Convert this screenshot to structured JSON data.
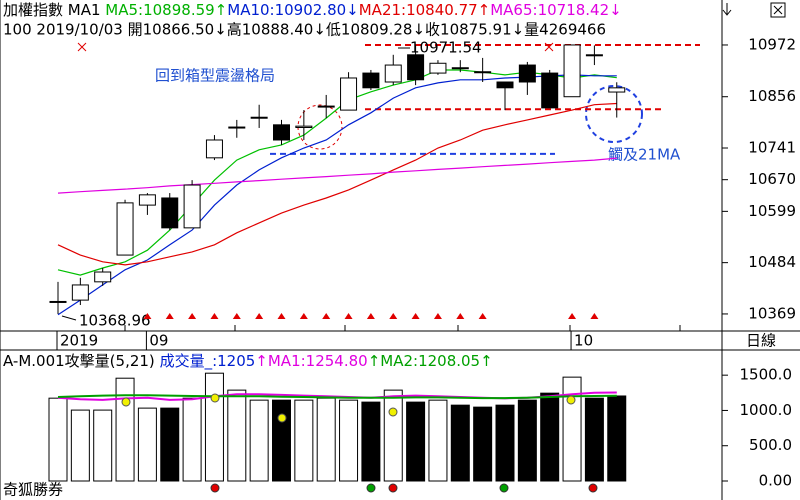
{
  "chart_data": [
    {
      "type": "candlestick",
      "header": [
        {
          "text": "加權指數 MA1 ",
          "color": "#000000"
        },
        {
          "text": "MA5:10898.59↑",
          "color": "#00b000"
        },
        {
          "text": "MA10:10902.80↓",
          "color": "#0020d0"
        },
        {
          "text": "MA21:10840.77↑",
          "color": "#e00000"
        },
        {
          "text": "MA65:10718.42↓",
          "color": "#e000e0"
        }
      ],
      "subheader": "100 2019/10/03 開10866.50↓高10888.40↓低10809.28↓收10875.91↓量4269466",
      "categories": [
        "2019",
        null,
        null,
        null,
        "09",
        null,
        null,
        null,
        null,
        null,
        null,
        null,
        null,
        null,
        null,
        null,
        null,
        null,
        null,
        null,
        null,
        null,
        null,
        "10",
        null,
        null
      ],
      "open": [
        10396,
        10400,
        10441,
        10501,
        10613,
        10629,
        10562,
        10719,
        10786,
        10808,
        10793,
        10787,
        10833,
        10826,
        10909,
        10889,
        10950,
        10909,
        10920,
        10911,
        10889,
        10927,
        10909,
        10856,
        10949,
        10866.5
      ],
      "high": [
        10441,
        10450,
        10472,
        10625,
        10640,
        10640,
        10669,
        10770,
        10804,
        10838,
        10804,
        10826,
        10860,
        10911,
        10916,
        10950,
        10971.54,
        10938,
        10938,
        10943,
        10889,
        10934,
        10916,
        10972,
        10971,
        10888.4
      ],
      "low": [
        10368.96,
        10389,
        10432,
        10501,
        10591,
        10557,
        10562,
        10714,
        10764,
        10786,
        10748,
        10759,
        10808,
        10826,
        10871,
        10882,
        10882,
        10905,
        10911,
        10889,
        10826,
        10860,
        10831,
        10856,
        10927,
        10809.28
      ],
      "close": [
        10397,
        10434,
        10463,
        10618,
        10636,
        10562,
        10658,
        10759,
        10788,
        10810,
        10759,
        10790,
        10835,
        10898,
        10876,
        10927,
        10894,
        10931,
        10921,
        10912,
        10876,
        10889,
        10831,
        10972,
        10950,
        10875.91
      ],
      "up_color": "#ffffff",
      "down_color": "#000000",
      "series": [
        {
          "name": "MA5",
          "color": "#00c000",
          "values": [
            10468,
            10456,
            10472,
            10486,
            10512,
            10557,
            10613,
            10669,
            10714,
            10737,
            10748,
            10770,
            10808,
            10849,
            10867,
            10882,
            10894,
            10916,
            10916,
            10911,
            10905,
            10911,
            10905,
            10898,
            10905,
            10898.59
          ]
        },
        {
          "name": "MA10",
          "color": "#0020d0",
          "values": [
            10367,
            10400,
            10434,
            10468,
            10490,
            10524,
            10557,
            10613,
            10658,
            10692,
            10719,
            10741,
            10759,
            10793,
            10820,
            10853,
            10876,
            10887,
            10894,
            10894,
            10898,
            10900,
            10903,
            10905,
            10903,
            10902.8
          ]
        },
        {
          "name": "MA21",
          "color": "#e00000",
          "values": [
            10524,
            10501,
            10486,
            10479,
            10486,
            10497,
            10508,
            10524,
            10551,
            10573,
            10595,
            10613,
            10629,
            10647,
            10669,
            10692,
            10714,
            10741,
            10759,
            10781,
            10793,
            10804,
            10815,
            10826,
            10838,
            10840.77
          ]
        },
        {
          "name": "MA65",
          "color": "#e000e0",
          "values": [
            10640,
            10643,
            10646,
            10649,
            10652,
            10656,
            10659,
            10662,
            10665,
            10668,
            10671,
            10674,
            10677,
            10680,
            10683,
            10687,
            10690,
            10693,
            10696,
            10699,
            10702,
            10705,
            10708,
            10711,
            10714,
            10718.42
          ]
        }
      ],
      "ylim": [
        10333,
        11028
      ],
      "yticks": [
        10369,
        10484,
        10599,
        10670,
        10741,
        10856,
        10972
      ],
      "reference_lines": [
        {
          "value": 10972,
          "color": "#e00000"
        },
        {
          "value": 10828,
          "color": "#e00000"
        },
        {
          "value": 10728,
          "color": "#2040e0"
        }
      ],
      "annotations": [
        {
          "text": "回到箱型震盪格局",
          "color": "#2050d0"
        },
        {
          "text": "觸及21MA",
          "color": "#2050d0"
        }
      ],
      "period_label": "日線"
    },
    {
      "type": "bar",
      "header": [
        {
          "text": "A-M.001攻擊量(5,21) ",
          "color": "#000000"
        },
        {
          "text": "成交量_:1205",
          "color": "#0020d0"
        },
        {
          "text": "↑MA1:1254.80",
          "color": "#e000e0"
        },
        {
          "text": "↑MA2:1208.05↑",
          "color": "#00a000"
        }
      ],
      "values": [
        1174,
        1005,
        1005,
        1457,
        1033,
        1033,
        1174,
        1528,
        1288,
        1146,
        1146,
        1146,
        1174,
        1146,
        1118,
        1288,
        1118,
        1146,
        1075,
        1047,
        1075,
        1146,
        1245,
        1472,
        1174,
        1205
      ],
      "bar_fills": [
        "#ffffff",
        "#ffffff",
        "#ffffff",
        "#ffffff",
        "#ffffff",
        "#000000",
        "#ffffff",
        "#ffffff",
        "#ffffff",
        "#ffffff",
        "#000000",
        "#ffffff",
        "#ffffff",
        "#ffffff",
        "#000000",
        "#ffffff",
        "#000000",
        "#ffffff",
        "#000000",
        "#000000",
        "#000000",
        "#000000",
        "#000000",
        "#ffffff",
        "#000000",
        "#000000"
      ],
      "series": [
        {
          "name": "MA1",
          "color": "#e000e0",
          "values": [
            1180,
            1160,
            1150,
            1170,
            1180,
            1150,
            1160,
            1200,
            1230,
            1230,
            1220,
            1210,
            1200,
            1190,
            1180,
            1200,
            1210,
            1200,
            1190,
            1180,
            1170,
            1180,
            1200,
            1230,
            1250,
            1254.8
          ]
        },
        {
          "name": "MA2",
          "color": "#00a000",
          "values": [
            1190,
            1200,
            1210,
            1215,
            1215,
            1210,
            1205,
            1200,
            1200,
            1200,
            1195,
            1190,
            1185,
            1180,
            1180,
            1180,
            1185,
            1185,
            1180,
            1175,
            1175,
            1180,
            1190,
            1200,
            1205,
            1208.05
          ]
        }
      ],
      "ylim": [
        0,
        1800
      ],
      "yticks": [
        {
          "value": 0,
          "label": "0.00"
        },
        {
          "value": 500,
          "label": "500.0"
        },
        {
          "value": 1000,
          "label": "1000.0"
        },
        {
          "value": 1500,
          "label": "1500.0"
        }
      ],
      "footer": "奇狐勝券"
    }
  ]
}
